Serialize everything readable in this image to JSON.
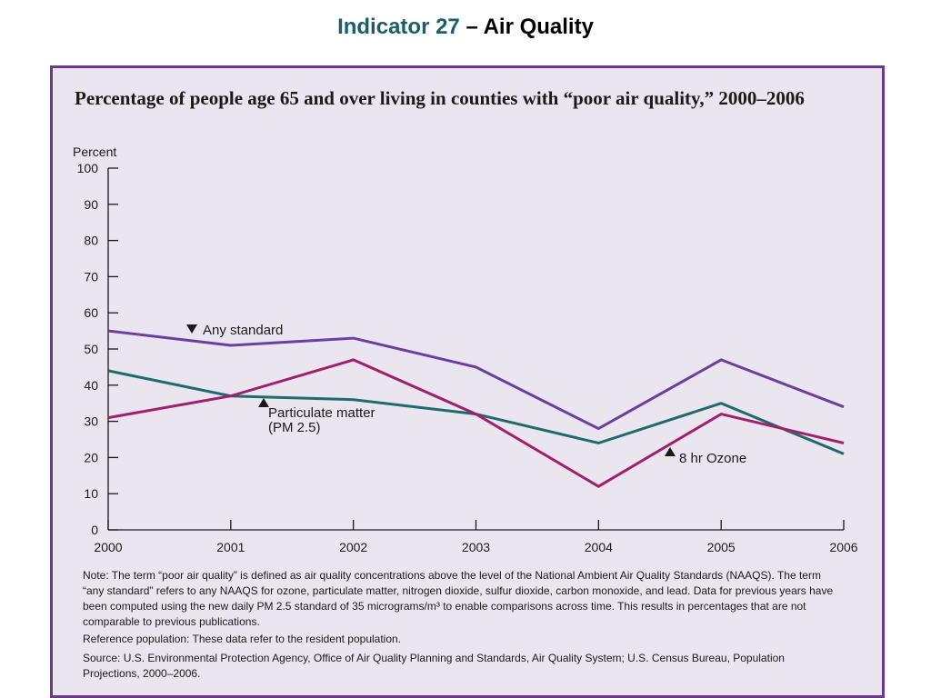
{
  "slide": {
    "title_part1": "Indicator 27",
    "title_part2": " – Air Quality",
    "title_color": "#1b5e6b"
  },
  "chart_data": {
    "type": "line",
    "title": "Percentage of people age 65 and over living in counties with “poor air quality,” 2000–2006",
    "ylabel": "Percent",
    "xlabel": "",
    "categories": [
      "2000",
      "2001",
      "2002",
      "2003",
      "2004",
      "2005",
      "2006"
    ],
    "ylim": [
      0,
      100
    ],
    "yticks": [
      0,
      10,
      20,
      30,
      40,
      50,
      60,
      70,
      80,
      90,
      100
    ],
    "grid": false,
    "series": [
      {
        "name": "Any standard",
        "color": "#6b3fa0",
        "values": [
          55,
          51,
          53,
          45,
          28,
          47,
          34
        ]
      },
      {
        "name": "Particulate matter (PM 2.5)",
        "color": "#1f6b6b",
        "values": [
          44,
          37,
          36,
          32,
          24,
          35,
          21
        ]
      },
      {
        "name": "8 hr Ozone",
        "color": "#a0206e",
        "values": [
          31,
          37,
          47,
          32,
          12,
          32,
          24
        ]
      }
    ],
    "annotations": [
      {
        "series": "Any standard",
        "marker": "down",
        "lines": [
          "Any standard"
        ]
      },
      {
        "series": "Particulate matter (PM 2.5)",
        "marker": "up",
        "lines": [
          "Particulate matter",
          "(PM 2.5)"
        ]
      },
      {
        "series": "8 hr Ozone",
        "marker": "up",
        "lines": [
          "8 hr Ozone"
        ]
      }
    ]
  },
  "notes": {
    "note": "Note: The term “poor air quality” is defined as air quality concentrations above the level of the National Ambient Air Quality Standards (NAAQS). The term “any standard” refers to any NAAQS for ozone, particulate matter, nitrogen dioxide, sulfur dioxide, carbon monoxide, and lead. Data for previous years have been computed using the new daily PM 2.5 standard of 35 micrograms/m³ to enable comparisons across time. This results in percentages that are not comparable to previous publications.",
    "reference": "Reference population: These data refer to the resident population.",
    "source": "Source: U.S. Environmental Protection Agency, Office of Air Quality Planning and Standards, Air Quality System; U.S. Census Bureau, Population Projections, 2000–2006."
  }
}
